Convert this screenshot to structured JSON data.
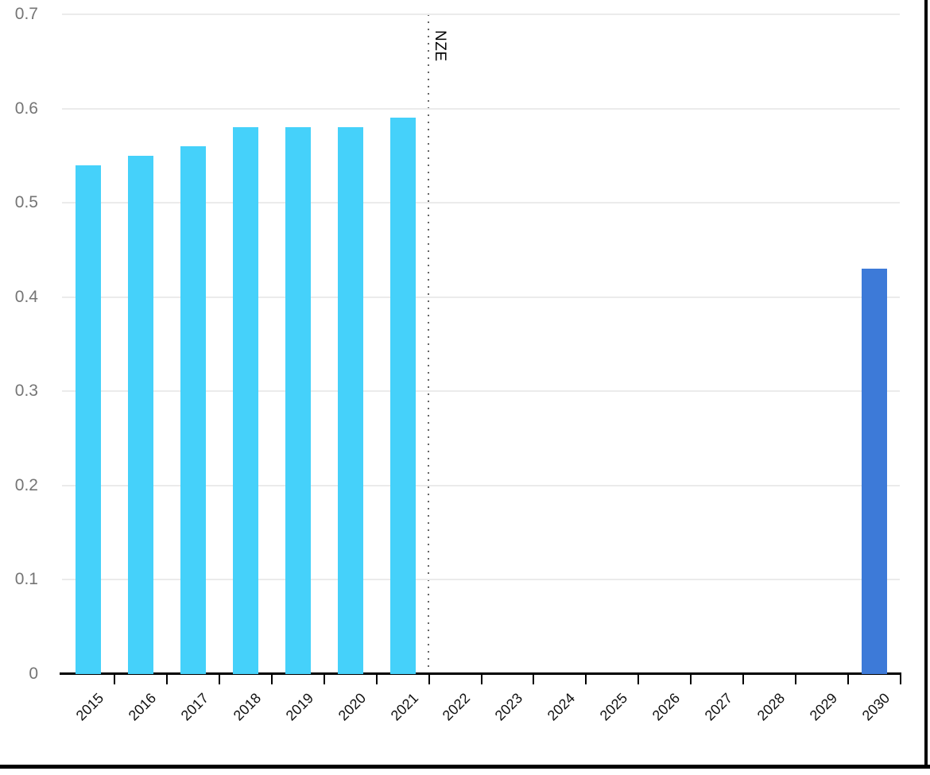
{
  "chart_data": {
    "type": "bar",
    "categories": [
      "2015",
      "2016",
      "2017",
      "2018",
      "2019",
      "2020",
      "2021",
      "2022",
      "2023",
      "2024",
      "2025",
      "2026",
      "2027",
      "2028",
      "2029",
      "2030"
    ],
    "values": [
      0.54,
      0.55,
      0.56,
      0.58,
      0.58,
      0.58,
      0.59,
      null,
      null,
      null,
      null,
      null,
      null,
      null,
      null,
      0.43
    ],
    "ylim": [
      0,
      0.7
    ],
    "ytick_labels": [
      "0",
      "0.1",
      "0.2",
      "0.3",
      "0.4",
      "0.5",
      "0.6",
      "0.7"
    ],
    "grid": "horizontal",
    "legend_position": "none",
    "annotation": {
      "label": "NZE",
      "type": "vertical-dotted-line",
      "x_between": [
        "2021",
        "2022"
      ]
    },
    "colors": {
      "bar_historical": "#45D1FA",
      "bar_projection": "#3D7AD8",
      "gridline": "#EBEBEB",
      "axis": "#000000",
      "ytick_text": "#757575",
      "xtick_text": "#111111",
      "annotation_line": "#666666",
      "background": "#FFFFFF"
    }
  }
}
